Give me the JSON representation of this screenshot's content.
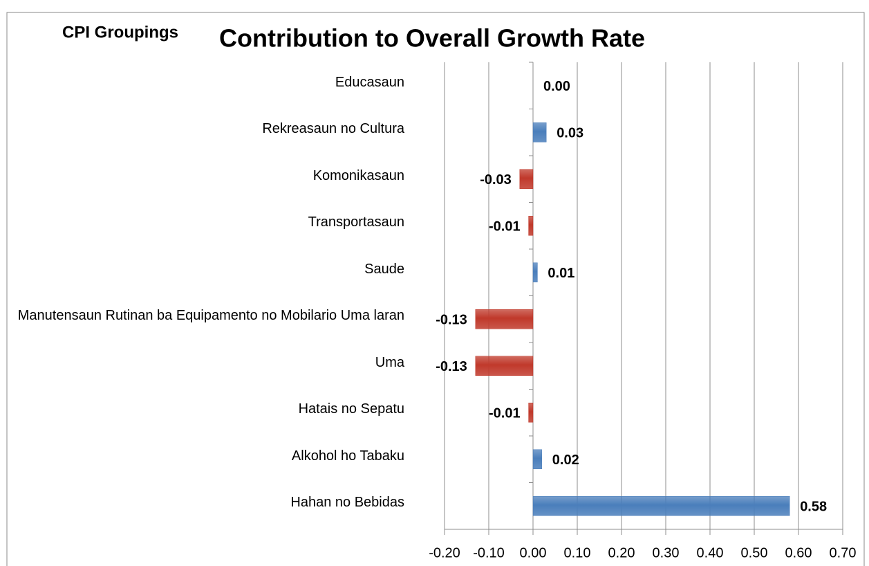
{
  "chart_data": {
    "type": "hbar",
    "title": "Contribution to Overall Growth Rate",
    "axis_title": "CPI Groupings",
    "categories": [
      "Educasaun",
      "Rekreasaun no Cultura",
      "Komonikasaun",
      "Transportasaun",
      "Saude",
      "Manutensaun Rutinan ba Equipamento no Mobilario Uma laran",
      "Uma",
      "Hatais no Sepatu",
      "Alkohol ho Tabaku",
      "Hahan no Bebidas"
    ],
    "values": [
      0.0,
      0.03,
      -0.03,
      -0.01,
      0.01,
      -0.13,
      -0.13,
      -0.01,
      0.02,
      0.58
    ],
    "value_labels": [
      "0.00",
      "0.03",
      "-0.03",
      "-0.01",
      "0.01",
      "-0.13",
      "-0.13",
      "-0.01",
      "0.02",
      "0.58"
    ],
    "positive_color": "#4a7ebb",
    "negative_color": "#c0392b",
    "xlim": [
      -0.2,
      0.7
    ],
    "xticks": [
      {
        "value": -0.2,
        "label": "-0.20"
      },
      {
        "value": -0.1,
        "label": "-0.10"
      },
      {
        "value": 0,
        "label": "0.00"
      },
      {
        "value": 0.1,
        "label": "0.10"
      },
      {
        "value": 0.2,
        "label": "0.20"
      },
      {
        "value": 0.3,
        "label": "0.30"
      },
      {
        "value": 0.4,
        "label": "0.40"
      },
      {
        "value": 0.5,
        "label": "0.50"
      },
      {
        "value": 0.6,
        "label": "0.60"
      },
      {
        "value": 0.7,
        "label": "0.70"
      }
    ],
    "grid": true
  }
}
